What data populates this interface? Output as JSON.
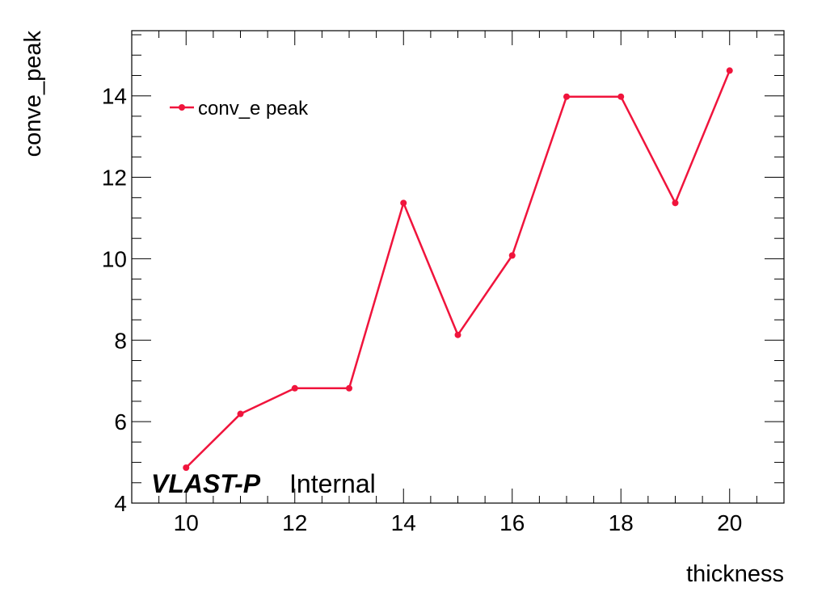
{
  "chart_data": {
    "type": "line",
    "xlabel": "thickness",
    "ylabel": "conve_peak",
    "xlim": [
      9.0,
      21.0
    ],
    "ylim": [
      4.0,
      15.6
    ],
    "x_ticks": [
      10,
      12,
      14,
      16,
      18,
      20
    ],
    "y_ticks": [
      4,
      6,
      8,
      10,
      12,
      14
    ],
    "grid": false,
    "legend_position": "top-left",
    "series": [
      {
        "name": "conv_e peak",
        "color": "#f0143c",
        "marker": "circle",
        "x": [
          10,
          11,
          12,
          13,
          14,
          15,
          16,
          17,
          18,
          19,
          20
        ],
        "y": [
          4.87,
          6.19,
          6.82,
          6.82,
          11.37,
          8.13,
          10.08,
          13.98,
          13.98,
          11.37,
          14.62
        ]
      }
    ]
  },
  "annotation": {
    "brand": "VLAST-P",
    "status": "Internal"
  }
}
